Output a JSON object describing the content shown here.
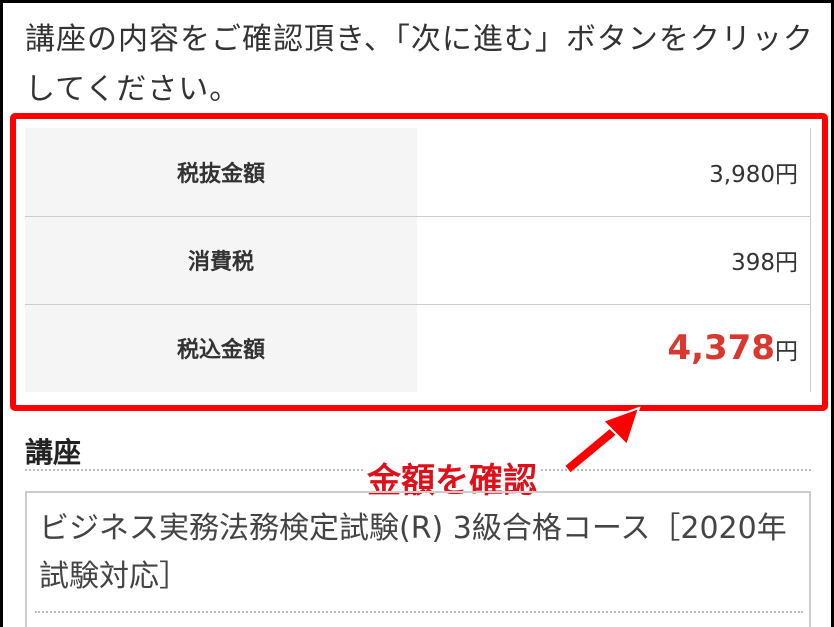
{
  "intro": "講座の内容をご確認頂き、「次に進む」ボタンをクリックしてください。",
  "price_table": [
    {
      "label": "税抜金額",
      "value": "3,980",
      "unit": "円"
    },
    {
      "label": "消費税",
      "value": "398",
      "unit": "円"
    },
    {
      "label": "税込金額",
      "value": "4,378",
      "unit": "円"
    }
  ],
  "course_heading": "講座",
  "course_name": "ビジネス実務法務検定試験(R) 3級合格コース［2020年試験対応］",
  "annotation": "金額を確認",
  "colors": {
    "highlight": "#ff0000",
    "total": "#d9382e"
  }
}
